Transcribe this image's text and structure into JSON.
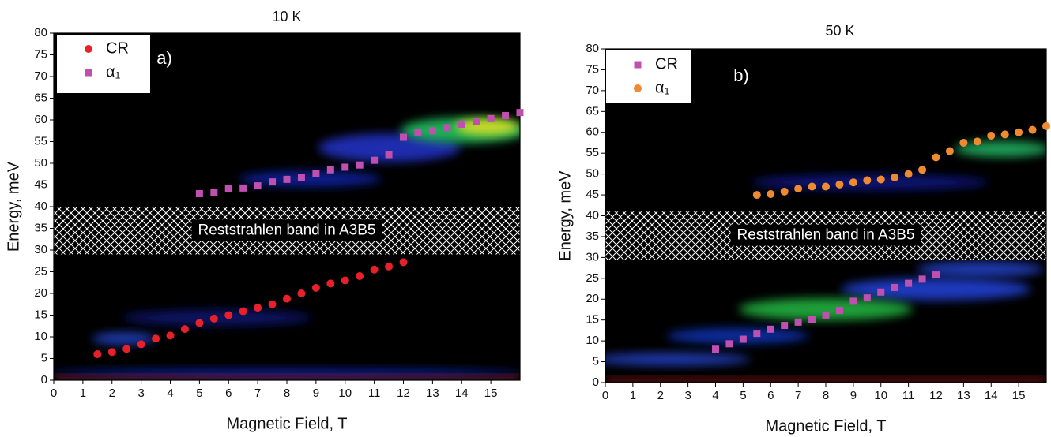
{
  "chart_data": [
    {
      "type": "scatter",
      "title": "10 K",
      "xlabel": "Magnetic Field, T",
      "ylabel": "Energy, meV",
      "panel_label": "a)",
      "xlim": [
        0,
        16
      ],
      "ylim": [
        0,
        80
      ],
      "xticks": [
        0,
        1,
        2,
        3,
        4,
        5,
        6,
        7,
        8,
        9,
        10,
        11,
        12,
        13,
        14,
        15
      ],
      "yticks": [
        0,
        5,
        10,
        15,
        20,
        25,
        30,
        35,
        40,
        45,
        50,
        55,
        60,
        65,
        70,
        75,
        80
      ],
      "band": [
        29,
        40
      ],
      "band_label": "Reststrahlen band in A3B5",
      "legend": "upper left",
      "series": [
        {
          "name": "CR",
          "color": "#e8202a",
          "marker": "circle",
          "x": [
            1.5,
            2,
            2.5,
            3,
            3.5,
            4,
            4.5,
            5,
            5.5,
            6,
            6.5,
            7,
            7.5,
            8,
            8.5,
            9,
            9.5,
            10,
            10.5,
            11,
            11.5,
            12
          ],
          "values": [
            6,
            6.5,
            7.2,
            8.3,
            9.6,
            10.3,
            11.8,
            13.2,
            14.2,
            15,
            15.9,
            16.7,
            17.5,
            18.8,
            20,
            21.3,
            22.3,
            23,
            24,
            25.5,
            26.2,
            27.2
          ]
        },
        {
          "name": "α₁",
          "color": "#c050b0",
          "marker": "square",
          "x": [
            5,
            5.5,
            6,
            6.5,
            7,
            7.5,
            8,
            8.5,
            9,
            9.5,
            10,
            10.5,
            11,
            11.5,
            12,
            12.5,
            13,
            13.5,
            14,
            14.5,
            15,
            15.5,
            16
          ],
          "values": [
            43,
            43.2,
            44.2,
            44.3,
            44.8,
            45.7,
            46.3,
            46.8,
            47.7,
            48.5,
            49.1,
            49.6,
            50.7,
            52,
            56,
            57,
            57.5,
            58.2,
            59,
            59.7,
            60.3,
            61,
            61.7
          ]
        }
      ]
    },
    {
      "type": "scatter",
      "title": "50 K",
      "xlabel": "Magnetic Field, T",
      "ylabel": "Energy, meV",
      "panel_label": "b)",
      "xlim": [
        0,
        16
      ],
      "ylim": [
        0,
        80
      ],
      "xticks": [
        0,
        1,
        2,
        3,
        4,
        5,
        6,
        7,
        8,
        9,
        10,
        11,
        12,
        13,
        14,
        15
      ],
      "yticks": [
        0,
        5,
        10,
        15,
        20,
        25,
        30,
        35,
        40,
        45,
        50,
        55,
        60,
        65,
        70,
        75,
        80
      ],
      "band": [
        29.5,
        41
      ],
      "band_label": "Reststrahlen band in A3B5",
      "legend": "upper left",
      "series": [
        {
          "name": "CR",
          "color": "#c050b0",
          "marker": "square",
          "x": [
            4,
            4.5,
            5,
            5.5,
            6,
            6.5,
            7,
            7.5,
            8,
            8.5,
            9,
            9.5,
            10,
            10.5,
            11,
            11.5,
            12
          ],
          "values": [
            8,
            9.3,
            10.4,
            11.8,
            12.8,
            13.7,
            14.5,
            15.1,
            16.2,
            17.3,
            19.5,
            20.3,
            21.7,
            22.8,
            23.8,
            24.8,
            25.8
          ]
        },
        {
          "name": "α₁",
          "color": "#f08a30",
          "marker": "circle",
          "x": [
            5.5,
            6,
            6.5,
            7,
            7.5,
            8,
            8.5,
            9,
            9.5,
            10,
            10.5,
            11,
            11.5,
            12,
            12.5,
            13,
            13.5,
            14,
            14.5,
            15,
            15.5,
            16
          ],
          "values": [
            45,
            45.2,
            45.8,
            46.5,
            47,
            47,
            47.5,
            48,
            48.5,
            48.7,
            49.2,
            50,
            51,
            54,
            55.5,
            57.5,
            57.8,
            59.2,
            59.5,
            60,
            60.6,
            61.5
          ]
        }
      ]
    }
  ]
}
